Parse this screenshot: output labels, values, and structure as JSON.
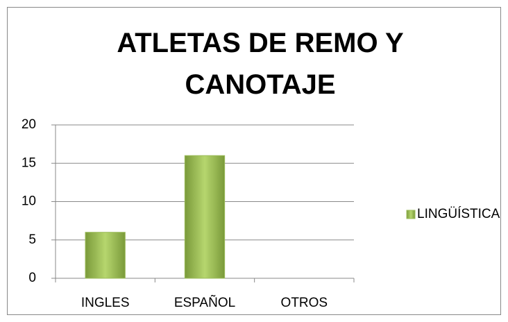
{
  "chart_data": {
    "type": "bar",
    "title": "ATLETAS DE REMO Y CANOTAJE",
    "categories": [
      "INGLES",
      "ESPAÑOL",
      "OTROS"
    ],
    "series": [
      {
        "name": "LINGÜÍSTICA",
        "color": "#9bbb59",
        "values": [
          6,
          16,
          0
        ]
      }
    ],
    "ylim": [
      0,
      20
    ],
    "yticks": [
      0,
      5,
      10,
      15,
      20
    ],
    "grid": true,
    "legend": "right"
  }
}
